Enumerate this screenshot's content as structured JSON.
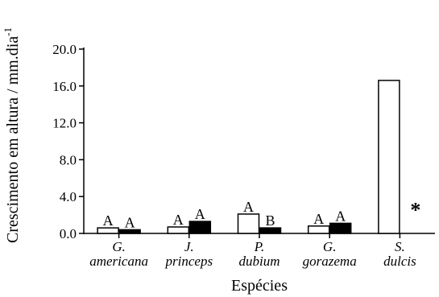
{
  "chart_data": {
    "type": "bar",
    "xlabel": "Espécies",
    "ylabel": "Crescimento em altura / mm.dia",
    "ylabel_superscript": "-1",
    "ylim": [
      0,
      20
    ],
    "yticks": [
      "0.0",
      "4.0",
      "8.0",
      "12.0",
      "16.0",
      "20.0"
    ],
    "ytick_values": [
      0,
      4,
      8,
      12,
      16,
      20
    ],
    "categories": [
      [
        "G.",
        "americana"
      ],
      [
        "J.",
        "princeps"
      ],
      [
        "P.",
        "dubium"
      ],
      [
        "G.",
        "gorazema"
      ],
      [
        "S.",
        "dulcis"
      ]
    ],
    "series": [
      {
        "fill": "#ffffff",
        "values": [
          0.6,
          0.7,
          2.1,
          0.8,
          16.6
        ],
        "annotations": [
          "A",
          "A",
          "A",
          "A",
          ""
        ]
      },
      {
        "fill": "#000000",
        "values": [
          0.4,
          1.3,
          0.6,
          1.1,
          null
        ],
        "annotations": [
          "A",
          "A",
          "B",
          "A",
          "*"
        ]
      }
    ],
    "grid": false,
    "legend": "none"
  }
}
